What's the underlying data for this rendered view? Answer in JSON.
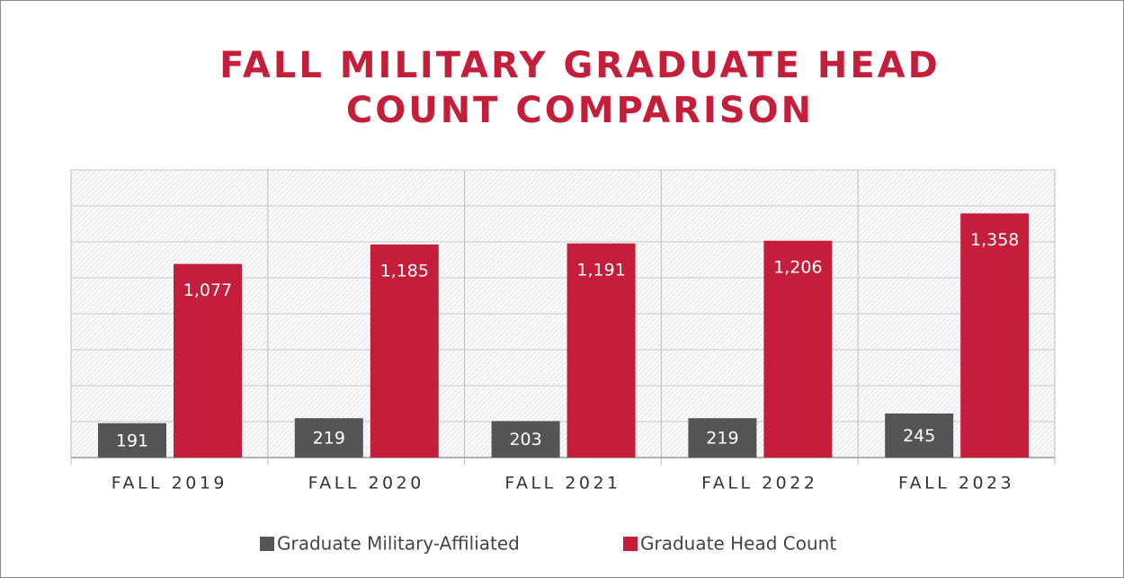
{
  "chart_data": {
    "type": "bar",
    "title": [
      "FALL MILITARY GRADUATE HEAD",
      "COUNT COMPARISON"
    ],
    "categories": [
      "FALL 2019",
      "FALL 2020",
      "FALL 2021",
      "FALL 2022",
      "FALL 2023"
    ],
    "series": [
      {
        "name": "Graduate Military-Affiliated",
        "color": "#555555",
        "values": [
          191,
          219,
          203,
          219,
          245
        ]
      },
      {
        "name": "Graduate Head Count",
        "color": "#c41e3a",
        "values": [
          1077,
          1185,
          1191,
          1206,
          1358
        ],
        "value_labels": [
          "1,077",
          "1,185",
          "1,191",
          "1,206",
          "1,358"
        ]
      }
    ],
    "ylim": [
      0,
      1600
    ],
    "yticks": [
      0,
      200,
      400,
      600,
      800,
      1000,
      1200,
      1400,
      1600
    ],
    "grid": true,
    "legend": "bottom"
  }
}
